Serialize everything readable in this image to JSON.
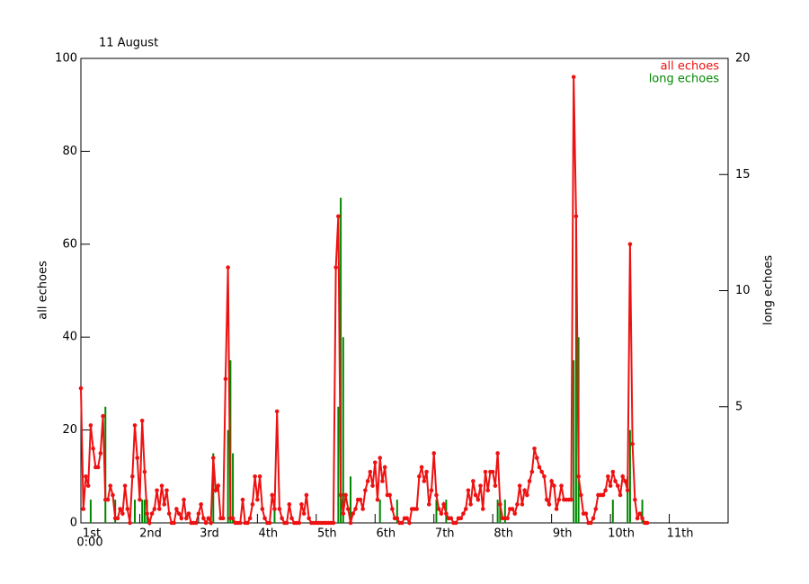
{
  "chart_data": {
    "type": "line",
    "title": "11 August",
    "x_sublabel": "0:00",
    "ylabel": "all echoes",
    "y2label": "long echoes",
    "xlim": [
      0,
      264
    ],
    "xticks": [
      {
        "value": 0,
        "label": "1st"
      },
      {
        "value": 24,
        "label": "2nd"
      },
      {
        "value": 48,
        "label": "3rd"
      },
      {
        "value": 72,
        "label": "4th"
      },
      {
        "value": 96,
        "label": "5th"
      },
      {
        "value": 120,
        "label": "6th"
      },
      {
        "value": 144,
        "label": "7th"
      },
      {
        "value": 168,
        "label": "8th"
      },
      {
        "value": 192,
        "label": "9th"
      },
      {
        "value": 216,
        "label": "10th"
      },
      {
        "value": 240,
        "label": "11th"
      }
    ],
    "ylim": [
      0,
      100
    ],
    "yticks": [
      0,
      20,
      40,
      60,
      80,
      100
    ],
    "y2lim": [
      0,
      20
    ],
    "y2ticks": [
      5,
      10,
      15,
      20
    ],
    "legend": "upper right",
    "series": [
      {
        "name": "long echoes",
        "color": "#008800",
        "axis": "y2",
        "kind": "bar",
        "x": [
          4,
          10,
          14,
          22,
          25,
          26,
          27,
          54,
          60,
          61,
          62,
          79,
          105,
          106,
          107,
          110,
          122,
          129,
          145,
          149,
          170,
          171,
          173,
          201,
          202,
          203,
          217,
          223,
          224,
          229
        ],
        "values": [
          1,
          5,
          1,
          1,
          1,
          1,
          1,
          3,
          4,
          7,
          3,
          1,
          5,
          14,
          8,
          2,
          1,
          1,
          1,
          1,
          1,
          1,
          1,
          7,
          13,
          8,
          1,
          2,
          4,
          1
        ]
      },
      {
        "name": "all echoes",
        "color": "#ee1111",
        "axis": "y",
        "kind": "line",
        "x": [
          0,
          1,
          2,
          3,
          4,
          5,
          6,
          7,
          8,
          9,
          10,
          11,
          12,
          13,
          14,
          15,
          16,
          17,
          18,
          19,
          20,
          21,
          22,
          23,
          24,
          25,
          26,
          27,
          28,
          29,
          30,
          31,
          32,
          33,
          34,
          35,
          36,
          37,
          38,
          39,
          40,
          41,
          42,
          43,
          44,
          45,
          46,
          47,
          48,
          49,
          50,
          51,
          52,
          53,
          54,
          55,
          56,
          57,
          58,
          59,
          60,
          61,
          62,
          63,
          64,
          65,
          66,
          67,
          68,
          69,
          70,
          71,
          72,
          73,
          74,
          75,
          76,
          77,
          78,
          79,
          80,
          81,
          82,
          83,
          84,
          85,
          86,
          87,
          88,
          89,
          90,
          91,
          92,
          93,
          94,
          95,
          96,
          97,
          98,
          99,
          100,
          101,
          102,
          103,
          104,
          105,
          106,
          107,
          108,
          109,
          110,
          111,
          112,
          113,
          114,
          115,
          116,
          117,
          118,
          119,
          120,
          121,
          122,
          123,
          124,
          125,
          126,
          127,
          128,
          129,
          130,
          131,
          132,
          133,
          134,
          135,
          136,
          137,
          138,
          139,
          140,
          141,
          142,
          143,
          144,
          145,
          146,
          147,
          148,
          149,
          150,
          151,
          152,
          153,
          154,
          155,
          156,
          157,
          158,
          159,
          160,
          161,
          162,
          163,
          164,
          165,
          166,
          167,
          168,
          169,
          170,
          171,
          172,
          173,
          174,
          175,
          176,
          177,
          178,
          179,
          180,
          181,
          182,
          183,
          184,
          185,
          186,
          187,
          188,
          189,
          190,
          191,
          192,
          193,
          194,
          195,
          196,
          197,
          198,
          199,
          200,
          201,
          202,
          203,
          204,
          205,
          206,
          207,
          208,
          209,
          210,
          211,
          212,
          213,
          214,
          215,
          216,
          217,
          218,
          219,
          220,
          221,
          222,
          223,
          224,
          225,
          226,
          227,
          228,
          229,
          230,
          231
        ],
        "values": [
          29,
          3,
          10,
          8,
          21,
          16,
          12,
          12,
          15,
          23,
          5,
          5,
          8,
          6,
          1,
          1,
          3,
          2,
          8,
          3,
          0,
          10,
          21,
          14,
          5,
          22,
          11,
          2,
          0,
          2,
          3,
          7,
          3,
          8,
          4,
          7,
          2,
          0,
          0,
          3,
          2,
          1,
          5,
          1,
          2,
          0,
          0,
          0,
          2,
          4,
          1,
          0,
          1,
          0,
          14,
          7,
          8,
          1,
          1,
          31,
          55,
          1,
          1,
          0,
          0,
          0,
          5,
          0,
          0,
          1,
          4,
          10,
          5,
          10,
          3,
          1,
          0,
          0,
          6,
          3,
          24,
          3,
          1,
          0,
          0,
          4,
          1,
          0,
          0,
          0,
          4,
          2,
          6,
          1,
          0,
          0,
          0,
          0,
          0,
          0,
          0,
          0,
          0,
          0,
          55,
          66,
          6,
          2,
          6,
          3,
          0,
          2,
          3,
          5,
          5,
          3,
          7,
          9,
          11,
          8,
          13,
          5,
          14,
          9,
          12,
          6,
          6,
          3,
          1,
          1,
          0,
          0,
          1,
          1,
          0,
          3,
          3,
          3,
          10,
          12,
          9,
          11,
          4,
          7,
          15,
          6,
          3,
          2,
          4,
          2,
          1,
          1,
          0,
          0,
          1,
          1,
          2,
          3,
          7,
          4,
          9,
          6,
          5,
          8,
          3,
          11,
          7,
          11,
          11,
          8,
          15,
          4,
          1,
          1,
          1,
          3,
          3,
          2,
          4,
          8,
          4,
          7,
          6,
          9,
          11,
          16,
          14,
          12,
          11,
          10,
          5,
          4,
          9,
          8,
          3,
          5,
          8,
          5,
          5,
          5,
          5,
          96,
          66,
          10,
          6,
          2,
          2,
          0,
          0,
          1,
          3,
          6,
          6,
          6,
          7,
          10,
          8,
          11,
          9,
          8,
          6,
          10,
          9,
          7,
          60,
          17,
          5,
          1,
          2,
          1,
          0,
          0
        ]
      }
    ]
  }
}
